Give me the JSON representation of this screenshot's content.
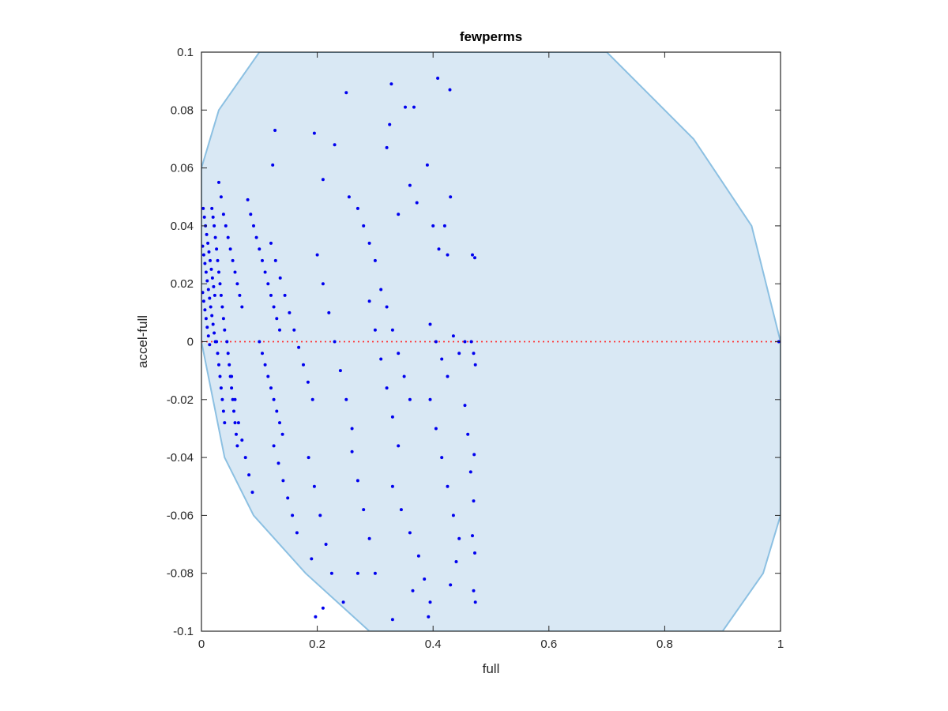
{
  "chart_data": {
    "type": "scatter",
    "title": "fewperms",
    "xlabel": "full",
    "ylabel": "accel-full",
    "xlim": [
      0,
      1
    ],
    "ylim": [
      -0.1,
      0.1
    ],
    "x_ticks": [
      "0",
      "0.2",
      "0.4",
      "0.6",
      "0.8",
      "1"
    ],
    "x_tick_values": [
      0,
      0.2,
      0.4,
      0.6,
      0.8,
      1
    ],
    "y_ticks": [
      "-0.1",
      "-0.08",
      "-0.06",
      "-0.04",
      "-0.02",
      "0",
      "0.02",
      "0.04",
      "0.06",
      "0.08",
      "0.1"
    ],
    "y_tick_values": [
      -0.1,
      -0.08,
      -0.06,
      -0.04,
      -0.02,
      0,
      0.02,
      0.04,
      0.06,
      0.08,
      0.1
    ],
    "grid": false,
    "colors": {
      "points": "#0000ee",
      "region_fill": "#d9e8f4",
      "region_edge": "#8cc0e2",
      "reference_line": "#ff3333",
      "axes": "#262626"
    },
    "reference_line": {
      "y": 0,
      "style": "dotted"
    },
    "region": {
      "description": "shaded circular band bounding feasible points",
      "boundary": [
        [
          0,
          0.06
        ],
        [
          0.03,
          0.08
        ],
        [
          0.1,
          0.1
        ],
        [
          0.7,
          0.1
        ],
        [
          0.85,
          0.07
        ],
        [
          0.95,
          0.04
        ],
        [
          1,
          0
        ],
        [
          1,
          -0.06
        ],
        [
          0.97,
          -0.08
        ],
        [
          0.9,
          -0.1
        ],
        [
          0.29,
          -0.1
        ],
        [
          0.18,
          -0.08
        ],
        [
          0.09,
          -0.06
        ],
        [
          0.04,
          -0.04
        ],
        [
          0,
          0
        ]
      ]
    },
    "series": [
      {
        "points": [
          [
            0.002,
            0.033
          ],
          [
            0.004,
            0.03
          ],
          [
            0.006,
            0.027
          ],
          [
            0.008,
            0.024
          ],
          [
            0.01,
            0.021
          ],
          [
            0.012,
            0.018
          ],
          [
            0.014,
            0.015
          ],
          [
            0.016,
            0.012
          ],
          [
            0.018,
            0.009
          ],
          [
            0.02,
            0.006
          ],
          [
            0.022,
            0.003
          ],
          [
            0.024,
            0.0
          ],
          [
            0.002,
            0.017
          ],
          [
            0.004,
            0.014
          ],
          [
            0.006,
            0.011
          ],
          [
            0.008,
            0.008
          ],
          [
            0.01,
            0.005
          ],
          [
            0.012,
            0.002
          ],
          [
            0.014,
            -0.001
          ],
          [
            0.003,
            0.046
          ],
          [
            0.005,
            0.043
          ],
          [
            0.007,
            0.04
          ],
          [
            0.009,
            0.037
          ],
          [
            0.011,
            0.034
          ],
          [
            0.013,
            0.031
          ],
          [
            0.015,
            0.028
          ],
          [
            0.017,
            0.025
          ],
          [
            0.019,
            0.022
          ],
          [
            0.021,
            0.019
          ],
          [
            0.023,
            0.016
          ],
          [
            0.018,
            0.046
          ],
          [
            0.02,
            0.043
          ],
          [
            0.022,
            0.04
          ],
          [
            0.024,
            0.036
          ],
          [
            0.026,
            0.032
          ],
          [
            0.028,
            0.028
          ],
          [
            0.03,
            0.024
          ],
          [
            0.032,
            0.02
          ],
          [
            0.034,
            0.016
          ],
          [
            0.036,
            0.012
          ],
          [
            0.038,
            0.008
          ],
          [
            0.04,
            0.004
          ],
          [
            0.026,
            0.0
          ],
          [
            0.028,
            -0.004
          ],
          [
            0.03,
            -0.008
          ],
          [
            0.032,
            -0.012
          ],
          [
            0.034,
            -0.016
          ],
          [
            0.036,
            -0.02
          ],
          [
            0.038,
            -0.024
          ],
          [
            0.04,
            -0.028
          ],
          [
            0.044,
            0.0
          ],
          [
            0.046,
            -0.004
          ],
          [
            0.048,
            -0.008
          ],
          [
            0.05,
            -0.012
          ],
          [
            0.052,
            -0.016
          ],
          [
            0.054,
            -0.02
          ],
          [
            0.056,
            -0.024
          ],
          [
            0.058,
            -0.028
          ],
          [
            0.06,
            -0.032
          ],
          [
            0.062,
            -0.036
          ],
          [
            0.03,
            0.055
          ],
          [
            0.034,
            0.05
          ],
          [
            0.038,
            0.044
          ],
          [
            0.042,
            0.04
          ],
          [
            0.046,
            0.036
          ],
          [
            0.05,
            0.032
          ],
          [
            0.054,
            0.028
          ],
          [
            0.058,
            0.024
          ],
          [
            0.062,
            0.02
          ],
          [
            0.066,
            0.016
          ],
          [
            0.07,
            0.012
          ],
          [
            0.052,
            -0.012
          ],
          [
            0.058,
            -0.02
          ],
          [
            0.064,
            -0.028
          ],
          [
            0.07,
            -0.034
          ],
          [
            0.076,
            -0.04
          ],
          [
            0.082,
            -0.046
          ],
          [
            0.088,
            -0.052
          ],
          [
            0.08,
            0.049
          ],
          [
            0.085,
            0.044
          ],
          [
            0.09,
            0.04
          ],
          [
            0.095,
            0.036
          ],
          [
            0.1,
            0.032
          ],
          [
            0.105,
            0.028
          ],
          [
            0.11,
            0.024
          ],
          [
            0.115,
            0.02
          ],
          [
            0.12,
            0.016
          ],
          [
            0.125,
            0.012
          ],
          [
            0.13,
            0.008
          ],
          [
            0.135,
            0.004
          ],
          [
            0.1,
            0.0
          ],
          [
            0.105,
            -0.004
          ],
          [
            0.11,
            -0.008
          ],
          [
            0.115,
            -0.012
          ],
          [
            0.12,
            -0.016
          ],
          [
            0.125,
            -0.02
          ],
          [
            0.13,
            -0.024
          ],
          [
            0.135,
            -0.028
          ],
          [
            0.14,
            -0.032
          ],
          [
            0.12,
            0.034
          ],
          [
            0.128,
            0.028
          ],
          [
            0.136,
            0.022
          ],
          [
            0.144,
            0.016
          ],
          [
            0.152,
            0.01
          ],
          [
            0.16,
            0.004
          ],
          [
            0.168,
            -0.002
          ],
          [
            0.176,
            -0.008
          ],
          [
            0.184,
            -0.014
          ],
          [
            0.192,
            -0.02
          ],
          [
            0.125,
            -0.036
          ],
          [
            0.133,
            -0.042
          ],
          [
            0.141,
            -0.048
          ],
          [
            0.149,
            -0.054
          ],
          [
            0.157,
            -0.06
          ],
          [
            0.165,
            -0.066
          ],
          [
            0.127,
            0.073
          ],
          [
            0.123,
            0.061
          ],
          [
            0.195,
            0.072
          ],
          [
            0.21,
            0.056
          ],
          [
            0.23,
            0.068
          ],
          [
            0.25,
            0.086
          ],
          [
            0.255,
            0.05
          ],
          [
            0.27,
            0.046
          ],
          [
            0.2,
            0.03
          ],
          [
            0.21,
            0.02
          ],
          [
            0.22,
            0.01
          ],
          [
            0.23,
            0.0
          ],
          [
            0.24,
            -0.01
          ],
          [
            0.25,
            -0.02
          ],
          [
            0.26,
            -0.03
          ],
          [
            0.185,
            -0.04
          ],
          [
            0.195,
            -0.05
          ],
          [
            0.205,
            -0.06
          ],
          [
            0.215,
            -0.07
          ],
          [
            0.225,
            -0.08
          ],
          [
            0.19,
            -0.075
          ],
          [
            0.21,
            -0.092
          ],
          [
            0.197,
            -0.095
          ],
          [
            0.26,
            -0.038
          ],
          [
            0.27,
            -0.048
          ],
          [
            0.28,
            -0.058
          ],
          [
            0.29,
            -0.068
          ],
          [
            0.3,
            -0.08
          ],
          [
            0.245,
            -0.09
          ],
          [
            0.27,
            -0.08
          ],
          [
            0.33,
            -0.096
          ],
          [
            0.28,
            0.04
          ],
          [
            0.29,
            0.034
          ],
          [
            0.3,
            0.028
          ],
          [
            0.31,
            0.018
          ],
          [
            0.32,
            0.012
          ],
          [
            0.33,
            0.004
          ],
          [
            0.34,
            -0.004
          ],
          [
            0.35,
            -0.012
          ],
          [
            0.36,
            -0.02
          ],
          [
            0.29,
            0.014
          ],
          [
            0.3,
            0.004
          ],
          [
            0.31,
            -0.006
          ],
          [
            0.32,
            -0.016
          ],
          [
            0.33,
            -0.026
          ],
          [
            0.34,
            -0.036
          ],
          [
            0.32,
            0.067
          ],
          [
            0.325,
            0.075
          ],
          [
            0.328,
            0.089
          ],
          [
            0.352,
            0.081
          ],
          [
            0.367,
            0.081
          ],
          [
            0.34,
            0.044
          ],
          [
            0.36,
            0.054
          ],
          [
            0.372,
            0.048
          ],
          [
            0.33,
            -0.05
          ],
          [
            0.345,
            -0.058
          ],
          [
            0.36,
            -0.066
          ],
          [
            0.375,
            -0.074
          ],
          [
            0.385,
            -0.082
          ],
          [
            0.395,
            -0.09
          ],
          [
            0.365,
            -0.086
          ],
          [
            0.392,
            -0.095
          ],
          [
            0.39,
            0.061
          ],
          [
            0.4,
            0.04
          ],
          [
            0.41,
            0.032
          ],
          [
            0.42,
            0.04
          ],
          [
            0.425,
            0.03
          ],
          [
            0.43,
            0.05
          ],
          [
            0.408,
            0.091
          ],
          [
            0.429,
            0.087
          ],
          [
            0.395,
            0.006
          ],
          [
            0.405,
            0.0
          ],
          [
            0.415,
            -0.006
          ],
          [
            0.425,
            -0.012
          ],
          [
            0.435,
            0.002
          ],
          [
            0.445,
            -0.004
          ],
          [
            0.455,
            0.0
          ],
          [
            0.395,
            -0.02
          ],
          [
            0.405,
            -0.03
          ],
          [
            0.415,
            -0.04
          ],
          [
            0.425,
            -0.05
          ],
          [
            0.435,
            -0.06
          ],
          [
            0.445,
            -0.068
          ],
          [
            0.44,
            -0.076
          ],
          [
            0.43,
            -0.084
          ],
          [
            0.455,
            -0.022
          ],
          [
            0.46,
            -0.032
          ],
          [
            0.465,
            -0.045
          ],
          [
            0.47,
            -0.055
          ],
          [
            0.468,
            -0.067
          ],
          [
            0.472,
            -0.073
          ],
          [
            0.47,
            -0.086
          ],
          [
            0.473,
            -0.09
          ],
          [
            0.468,
            0.03
          ],
          [
            0.472,
            0.029
          ],
          [
            0.466,
            0.0
          ],
          [
            0.47,
            -0.004
          ],
          [
            0.473,
            -0.008
          ],
          [
            0.471,
            -0.039
          ],
          [
            0.997,
            0.0
          ]
        ]
      }
    ]
  }
}
